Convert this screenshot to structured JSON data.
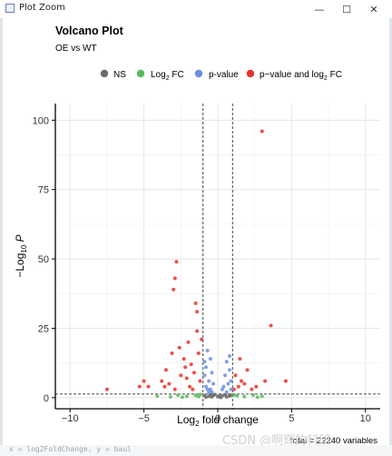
{
  "window": {
    "title": "Plot Zoom",
    "minimize_glyph": "—",
    "maximize_glyph": "☐",
    "close_glyph": "✕",
    "icon": "plot-window-icon"
  },
  "chart_data": {
    "type": "scatter",
    "title": "Volcano Plot",
    "subtitle": "OE vs WT",
    "xlabel": "Log2 fold change",
    "ylabel": "−Log10 P",
    "xlim": [
      -11,
      11
    ],
    "ylim": [
      -4,
      106
    ],
    "xticks": [
      -10,
      -5,
      0,
      5,
      10
    ],
    "yticks": [
      0,
      25,
      50,
      75,
      100
    ],
    "grid": true,
    "legend_position": "top",
    "cutoffs": {
      "fc": [
        -1,
        1
      ],
      "p": 1.3
    },
    "caption": "total = 22240 variables",
    "legend": [
      {
        "key": "NS",
        "label": "NS",
        "color": "#6b6b6b"
      },
      {
        "key": "FC",
        "label": "Log2 FC",
        "color": "#5cb85c"
      },
      {
        "key": "P",
        "label": "p-value",
        "color": "#6a8fe0"
      },
      {
        "key": "PFC",
        "label": "p−value and log2 FC",
        "color": "#e8332a"
      }
    ],
    "series": [
      {
        "key": "PFC",
        "points": [
          [
            3.0,
            96
          ],
          [
            3.6,
            26
          ],
          [
            4.6,
            6
          ],
          [
            -2.8,
            49
          ],
          [
            -2.9,
            43
          ],
          [
            -3.0,
            39
          ],
          [
            -1.5,
            34
          ],
          [
            -1.4,
            31
          ],
          [
            -3.1,
            16
          ],
          [
            -2.6,
            18
          ],
          [
            -5.0,
            6
          ],
          [
            -5.3,
            4
          ],
          [
            -7.5,
            3
          ],
          [
            -4.7,
            4
          ],
          [
            1.5,
            14
          ],
          [
            2.0,
            10
          ],
          [
            -3.5,
            10
          ],
          [
            -1.8,
            12
          ],
          [
            -1.1,
            21
          ],
          [
            -2.0,
            20
          ],
          [
            -2.3,
            14
          ],
          [
            -1.6,
            9
          ],
          [
            -3.8,
            6
          ],
          [
            1.2,
            8
          ],
          [
            1.8,
            5
          ],
          [
            2.6,
            4
          ],
          [
            3.2,
            6
          ],
          [
            1.1,
            3
          ],
          [
            -1.2,
            6
          ],
          [
            -2.5,
            8
          ],
          [
            -1.9,
            4
          ],
          [
            -2.9,
            3
          ],
          [
            -3.3,
            5
          ],
          [
            -1.3,
            16
          ],
          [
            -2.1,
            7
          ],
          [
            1.4,
            4
          ],
          [
            2.3,
            3
          ],
          [
            -1.7,
            3
          ],
          [
            1.6,
            6
          ],
          [
            -1.4,
            24
          ],
          [
            -2.2,
            11
          ],
          [
            -3.6,
            4
          ]
        ]
      },
      {
        "key": "P",
        "points": [
          [
            -0.7,
            17
          ],
          [
            -0.5,
            14
          ],
          [
            -0.8,
            11
          ],
          [
            -0.4,
            9
          ],
          [
            -0.9,
            8
          ],
          [
            -0.6,
            6
          ],
          [
            -0.3,
            5
          ],
          [
            -0.8,
            4
          ],
          [
            -0.5,
            3
          ],
          [
            0.6,
            13
          ],
          [
            0.8,
            10
          ],
          [
            0.5,
            8
          ],
          [
            0.9,
            6
          ],
          [
            0.7,
            5
          ],
          [
            0.4,
            4
          ],
          [
            0.3,
            3
          ],
          [
            -0.9,
            13
          ],
          [
            0.8,
            15
          ],
          [
            0.6,
            2
          ],
          [
            -0.6,
            2
          ],
          [
            -0.4,
            2
          ],
          [
            0.9,
            3
          ],
          [
            -0.7,
            3
          ]
        ]
      },
      {
        "key": "FC",
        "points": [
          [
            -1.5,
            0.8
          ],
          [
            -2.1,
            0.5
          ],
          [
            -2.7,
            0.9
          ],
          [
            -3.2,
            0.3
          ],
          [
            -1.3,
            0.4
          ],
          [
            1.3,
            0.7
          ],
          [
            1.8,
            0.4
          ],
          [
            2.4,
            0.9
          ],
          [
            3.0,
            0.5
          ],
          [
            -4.1,
            0.6
          ],
          [
            1.1,
            1.0
          ],
          [
            -1.2,
            1.1
          ],
          [
            2.7,
            0.2
          ],
          [
            -2.4,
            0.2
          ]
        ]
      },
      {
        "key": "NS",
        "points": [
          [
            -0.9,
            0.8
          ],
          [
            -0.6,
            0.5
          ],
          [
            -0.3,
            0.9
          ],
          [
            0.0,
            0.4
          ],
          [
            0.3,
            0.7
          ],
          [
            0.6,
            0.3
          ],
          [
            0.9,
            0.9
          ],
          [
            -0.8,
            0.2
          ],
          [
            -0.4,
            0.3
          ],
          [
            0.2,
            0.1
          ],
          [
            0.5,
            1.0
          ],
          [
            0.8,
            0.6
          ],
          [
            -0.2,
            1.1
          ],
          [
            0.1,
            0.6
          ],
          [
            -0.5,
            1.0
          ]
        ]
      }
    ]
  },
  "bottom": {
    "code_text": "x = log2FoldChange, y = baul",
    "watermark": "CSDN @啊辉的科研"
  }
}
